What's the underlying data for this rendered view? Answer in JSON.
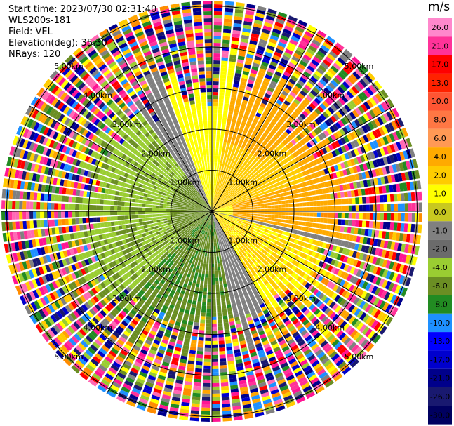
{
  "header": {
    "start_time": "Start time: 2023/07/30 02:31:40",
    "instrument": "WLS200s-181",
    "field": "Field: VEL",
    "elevation": "Elevation(deg): 35.30",
    "nrays": "NRays: 120"
  },
  "ring_labels": {
    "r1": "1.00km",
    "r2": "2.00km",
    "r3": "3.00km",
    "r4": "4.00km",
    "r5": "5.00km"
  },
  "colorbar": {
    "unit": "m/s",
    "ticks": [
      "26.0",
      "21.0",
      "17.0",
      "13.0",
      "10.0",
      "8.0",
      "6.0",
      "4.0",
      "2.0",
      "1.0",
      "0.0",
      "-1.0",
      "-2.0",
      "-4.0",
      "-6.0",
      "-8.0",
      "-10.0",
      "-13.0",
      "-17.0",
      "-21.0",
      "-26.0",
      "-30.0"
    ],
    "colors": [
      "#ff88cc",
      "#ff3399",
      "#ff0000",
      "#ff2200",
      "#ff5533",
      "#ff7744",
      "#ff9955",
      "#ffaa00",
      "#ffcc00",
      "#ffff00",
      "#c8c820",
      "#808080",
      "#6b6b6b",
      "#9acd32",
      "#6b8e23",
      "#228b22",
      "#1e90ff",
      "#0000ff",
      "#0000cd",
      "#00008b",
      "#191970",
      "#000060"
    ]
  }
}
